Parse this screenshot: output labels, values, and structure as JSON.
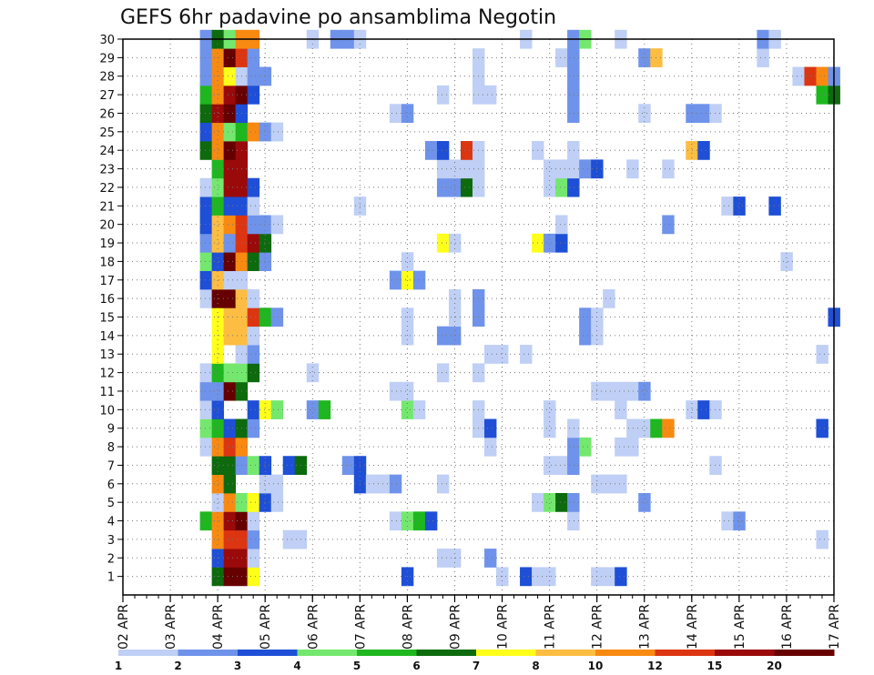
{
  "chart_data": {
    "type": "heatmap",
    "title": "GEFS 6hr padavine po ansamblima Negotin",
    "y_member_ticks": [
      "1",
      "2",
      "3",
      "4",
      "5",
      "6",
      "7",
      "8",
      "9",
      "10",
      "11",
      "12",
      "13",
      "14",
      "15",
      "16",
      "17",
      "18",
      "19",
      "20",
      "21",
      "22",
      "23",
      "24",
      "25",
      "26",
      "27",
      "28",
      "29",
      "30"
    ],
    "x_tick_labels": [
      "02 APR",
      "03 APR",
      "04 APR",
      "05 APR",
      "06 APR",
      "07 APR",
      "08 APR",
      "09 APR",
      "10 APR",
      "11 APR",
      "12 APR",
      "13 APR",
      "14 APR",
      "15 APR",
      "16 APR",
      "17 APR"
    ],
    "x_range_steps": [
      0,
      60
    ],
    "y_range_members": [
      0,
      30
    ],
    "grid": true,
    "legend": {
      "placement": "bottom",
      "thresholds": [
        "1",
        "2",
        "3",
        "4",
        "5",
        "6",
        "7",
        "8",
        "10",
        "12",
        "15",
        "20"
      ],
      "colors": [
        "#bfcff5",
        "#6f93ea",
        "#1e4fd6",
        "#74e86e",
        "#1fb71f",
        "#0d6a0d",
        "#ffff1a",
        "#fcbd42",
        "#f88a12",
        "#dc3512",
        "#9a0a0a",
        "#660000"
      ]
    },
    "cells": [
      [
        1,
        8,
        5
      ],
      [
        1,
        9,
        11
      ],
      [
        1,
        10,
        11
      ],
      [
        1,
        11,
        6
      ],
      [
        1,
        24,
        2
      ],
      [
        1,
        32,
        0
      ],
      [
        1,
        34,
        2
      ],
      [
        1,
        35,
        0
      ],
      [
        1,
        36,
        0
      ],
      [
        1,
        40,
        0
      ],
      [
        1,
        41,
        0
      ],
      [
        1,
        42,
        2
      ],
      [
        2,
        8,
        2
      ],
      [
        2,
        9,
        10
      ],
      [
        2,
        10,
        10
      ],
      [
        2,
        11,
        0
      ],
      [
        2,
        27,
        0
      ],
      [
        2,
        28,
        0
      ],
      [
        2,
        31,
        1
      ],
      [
        3,
        8,
        8
      ],
      [
        3,
        9,
        9
      ],
      [
        3,
        10,
        9
      ],
      [
        3,
        11,
        1
      ],
      [
        3,
        14,
        0
      ],
      [
        3,
        15,
        0
      ],
      [
        3,
        59,
        0
      ],
      [
        4,
        7,
        4
      ],
      [
        4,
        8,
        8
      ],
      [
        4,
        9,
        10
      ],
      [
        4,
        10,
        11
      ],
      [
        4,
        11,
        0
      ],
      [
        4,
        23,
        0
      ],
      [
        4,
        24,
        3
      ],
      [
        4,
        25,
        4
      ],
      [
        4,
        26,
        2
      ],
      [
        4,
        38,
        0
      ],
      [
        4,
        51,
        0
      ],
      [
        4,
        52,
        1
      ],
      [
        5,
        8,
        0
      ],
      [
        5,
        9,
        8
      ],
      [
        5,
        10,
        3
      ],
      [
        5,
        11,
        6
      ],
      [
        5,
        12,
        2
      ],
      [
        5,
        13,
        0
      ],
      [
        5,
        35,
        0
      ],
      [
        5,
        36,
        3
      ],
      [
        5,
        37,
        5
      ],
      [
        5,
        38,
        1
      ],
      [
        5,
        44,
        1
      ],
      [
        6,
        8,
        8
      ],
      [
        6,
        9,
        5
      ],
      [
        6,
        12,
        0
      ],
      [
        6,
        13,
        0
      ],
      [
        6,
        20,
        2
      ],
      [
        6,
        21,
        0
      ],
      [
        6,
        22,
        0
      ],
      [
        6,
        23,
        1
      ],
      [
        6,
        27,
        0
      ],
      [
        6,
        40,
        0
      ],
      [
        6,
        41,
        0
      ],
      [
        6,
        42,
        0
      ],
      [
        7,
        8,
        5
      ],
      [
        7,
        9,
        5
      ],
      [
        7,
        10,
        1
      ],
      [
        7,
        11,
        3
      ],
      [
        7,
        12,
        2
      ],
      [
        7,
        14,
        2
      ],
      [
        7,
        15,
        5
      ],
      [
        7,
        19,
        1
      ],
      [
        7,
        20,
        2
      ],
      [
        7,
        36,
        0
      ],
      [
        7,
        37,
        0
      ],
      [
        7,
        38,
        1
      ],
      [
        7,
        50,
        0
      ],
      [
        8,
        7,
        0
      ],
      [
        8,
        8,
        8
      ],
      [
        8,
        9,
        9
      ],
      [
        8,
        10,
        8
      ],
      [
        8,
        31,
        0
      ],
      [
        8,
        38,
        1
      ],
      [
        8,
        39,
        3
      ],
      [
        8,
        42,
        0
      ],
      [
        8,
        43,
        0
      ],
      [
        9,
        7,
        3
      ],
      [
        9,
        8,
        4
      ],
      [
        9,
        9,
        2
      ],
      [
        9,
        10,
        5
      ],
      [
        9,
        11,
        1
      ],
      [
        9,
        30,
        0
      ],
      [
        9,
        31,
        2
      ],
      [
        9,
        36,
        0
      ],
      [
        9,
        38,
        0
      ],
      [
        9,
        43,
        0
      ],
      [
        9,
        44,
        0
      ],
      [
        9,
        45,
        4
      ],
      [
        9,
        46,
        8
      ],
      [
        9,
        59,
        2
      ],
      [
        10,
        7,
        0
      ],
      [
        10,
        8,
        2
      ],
      [
        10,
        11,
        2
      ],
      [
        10,
        12,
        6
      ],
      [
        10,
        13,
        3
      ],
      [
        10,
        16,
        1
      ],
      [
        10,
        17,
        4
      ],
      [
        10,
        24,
        3
      ],
      [
        10,
        25,
        0
      ],
      [
        10,
        30,
        0
      ],
      [
        10,
        36,
        0
      ],
      [
        10,
        42,
        0
      ],
      [
        10,
        48,
        0
      ],
      [
        10,
        49,
        2
      ],
      [
        10,
        50,
        0
      ],
      [
        11,
        7,
        1
      ],
      [
        11,
        8,
        1
      ],
      [
        11,
        9,
        11
      ],
      [
        11,
        10,
        5
      ],
      [
        11,
        23,
        0
      ],
      [
        11,
        24,
        0
      ],
      [
        11,
        40,
        0
      ],
      [
        11,
        41,
        0
      ],
      [
        11,
        42,
        0
      ],
      [
        11,
        43,
        0
      ],
      [
        11,
        44,
        1
      ],
      [
        12,
        7,
        0
      ],
      [
        12,
        8,
        4
      ],
      [
        12,
        9,
        3
      ],
      [
        12,
        10,
        3
      ],
      [
        12,
        11,
        5
      ],
      [
        12,
        16,
        0
      ],
      [
        12,
        27,
        0
      ],
      [
        12,
        30,
        0
      ],
      [
        13,
        8,
        6
      ],
      [
        13,
        10,
        0
      ],
      [
        13,
        11,
        1
      ],
      [
        13,
        31,
        0
      ],
      [
        13,
        32,
        0
      ],
      [
        13,
        34,
        0
      ],
      [
        13,
        59,
        0
      ],
      [
        14,
        8,
        6
      ],
      [
        14,
        9,
        7
      ],
      [
        14,
        10,
        7
      ],
      [
        14,
        11,
        0
      ],
      [
        14,
        24,
        0
      ],
      [
        14,
        27,
        1
      ],
      [
        14,
        28,
        1
      ],
      [
        14,
        39,
        1
      ],
      [
        14,
        40,
        0
      ],
      [
        15,
        8,
        6
      ],
      [
        15,
        9,
        7
      ],
      [
        15,
        10,
        7
      ],
      [
        15,
        11,
        9
      ],
      [
        15,
        12,
        4
      ],
      [
        15,
        13,
        1
      ],
      [
        15,
        24,
        0
      ],
      [
        15,
        28,
        0
      ],
      [
        15,
        30,
        1
      ],
      [
        15,
        39,
        1
      ],
      [
        15,
        40,
        0
      ],
      [
        15,
        60,
        2
      ],
      [
        16,
        7,
        0
      ],
      [
        16,
        8,
        11
      ],
      [
        16,
        9,
        11
      ],
      [
        16,
        10,
        7
      ],
      [
        16,
        11,
        0
      ],
      [
        16,
        28,
        0
      ],
      [
        16,
        30,
        1
      ],
      [
        16,
        41,
        0
      ],
      [
        17,
        7,
        2
      ],
      [
        17,
        8,
        7
      ],
      [
        17,
        9,
        0
      ],
      [
        17,
        10,
        0
      ],
      [
        17,
        23,
        1
      ],
      [
        17,
        24,
        6
      ],
      [
        17,
        25,
        1
      ],
      [
        18,
        7,
        3
      ],
      [
        18,
        8,
        2
      ],
      [
        18,
        9,
        11
      ],
      [
        18,
        10,
        8
      ],
      [
        18,
        11,
        5
      ],
      [
        18,
        12,
        1
      ],
      [
        18,
        24,
        0
      ],
      [
        18,
        56,
        0
      ],
      [
        19,
        7,
        1
      ],
      [
        19,
        8,
        7
      ],
      [
        19,
        9,
        1
      ],
      [
        19,
        10,
        9
      ],
      [
        19,
        11,
        10
      ],
      [
        19,
        12,
        5
      ],
      [
        19,
        27,
        6
      ],
      [
        19,
        28,
        0
      ],
      [
        19,
        35,
        6
      ],
      [
        19,
        36,
        1
      ],
      [
        19,
        37,
        2
      ],
      [
        20,
        7,
        2
      ],
      [
        20,
        8,
        7
      ],
      [
        20,
        9,
        8
      ],
      [
        20,
        10,
        9
      ],
      [
        20,
        11,
        1
      ],
      [
        20,
        12,
        1
      ],
      [
        20,
        13,
        0
      ],
      [
        20,
        37,
        0
      ],
      [
        20,
        46,
        1
      ],
      [
        21,
        7,
        2
      ],
      [
        21,
        8,
        4
      ],
      [
        21,
        9,
        2
      ],
      [
        21,
        10,
        2
      ],
      [
        21,
        11,
        0
      ],
      [
        21,
        20,
        0
      ],
      [
        21,
        51,
        0
      ],
      [
        21,
        52,
        2
      ],
      [
        21,
        55,
        2
      ],
      [
        22,
        7,
        0
      ],
      [
        22,
        8,
        3
      ],
      [
        22,
        9,
        10
      ],
      [
        22,
        10,
        10
      ],
      [
        22,
        11,
        2
      ],
      [
        22,
        27,
        1
      ],
      [
        22,
        28,
        1
      ],
      [
        22,
        29,
        5
      ],
      [
        22,
        30,
        0
      ],
      [
        22,
        36,
        0
      ],
      [
        22,
        37,
        3
      ],
      [
        22,
        38,
        2
      ],
      [
        23,
        8,
        4
      ],
      [
        23,
        9,
        10
      ],
      [
        23,
        10,
        10
      ],
      [
        23,
        27,
        0
      ],
      [
        23,
        28,
        0
      ],
      [
        23,
        29,
        0
      ],
      [
        23,
        30,
        0
      ],
      [
        23,
        36,
        0
      ],
      [
        23,
        37,
        0
      ],
      [
        23,
        38,
        0
      ],
      [
        23,
        39,
        1
      ],
      [
        23,
        40,
        2
      ],
      [
        23,
        43,
        0
      ],
      [
        23,
        46,
        0
      ],
      [
        24,
        7,
        5
      ],
      [
        24,
        8,
        8
      ],
      [
        24,
        9,
        11
      ],
      [
        24,
        10,
        10
      ],
      [
        24,
        26,
        1
      ],
      [
        24,
        27,
        2
      ],
      [
        24,
        29,
        9
      ],
      [
        24,
        30,
        0
      ],
      [
        24,
        35,
        0
      ],
      [
        24,
        38,
        0
      ],
      [
        24,
        48,
        7
      ],
      [
        24,
        49,
        2
      ],
      [
        25,
        7,
        2
      ],
      [
        25,
        8,
        8
      ],
      [
        25,
        9,
        3
      ],
      [
        25,
        10,
        4
      ],
      [
        25,
        11,
        8
      ],
      [
        25,
        12,
        1
      ],
      [
        25,
        13,
        0
      ],
      [
        26,
        7,
        5
      ],
      [
        26,
        8,
        10
      ],
      [
        26,
        9,
        11
      ],
      [
        26,
        10,
        2
      ],
      [
        26,
        23,
        0
      ],
      [
        26,
        24,
        1
      ],
      [
        26,
        38,
        1
      ],
      [
        26,
        44,
        0
      ],
      [
        26,
        48,
        1
      ],
      [
        26,
        49,
        1
      ],
      [
        26,
        50,
        0
      ],
      [
        27,
        7,
        4
      ],
      [
        27,
        8,
        8
      ],
      [
        27,
        9,
        10
      ],
      [
        27,
        10,
        11
      ],
      [
        27,
        11,
        2
      ],
      [
        27,
        27,
        0
      ],
      [
        27,
        30,
        0
      ],
      [
        27,
        31,
        0
      ],
      [
        27,
        38,
        1
      ],
      [
        27,
        59,
        4
      ],
      [
        27,
        60,
        5
      ],
      [
        28,
        7,
        1
      ],
      [
        28,
        8,
        8
      ],
      [
        28,
        9,
        6
      ],
      [
        28,
        10,
        0
      ],
      [
        28,
        11,
        1
      ],
      [
        28,
        12,
        1
      ],
      [
        28,
        30,
        0
      ],
      [
        28,
        38,
        1
      ],
      [
        28,
        57,
        0
      ],
      [
        28,
        58,
        9
      ],
      [
        28,
        59,
        8
      ],
      [
        28,
        60,
        1
      ],
      [
        29,
        7,
        1
      ],
      [
        29,
        8,
        8
      ],
      [
        29,
        9,
        11
      ],
      [
        29,
        10,
        9
      ],
      [
        29,
        11,
        1
      ],
      [
        29,
        30,
        0
      ],
      [
        29,
        37,
        0
      ],
      [
        29,
        38,
        1
      ],
      [
        29,
        44,
        1
      ],
      [
        29,
        45,
        7
      ],
      [
        29,
        54,
        0
      ],
      [
        30,
        7,
        1
      ],
      [
        30,
        8,
        5
      ],
      [
        30,
        9,
        3
      ],
      [
        30,
        10,
        8
      ],
      [
        30,
        11,
        8
      ],
      [
        30,
        16,
        0
      ],
      [
        30,
        18,
        1
      ],
      [
        30,
        19,
        1
      ],
      [
        30,
        20,
        0
      ],
      [
        30,
        34,
        0
      ],
      [
        30,
        38,
        1
      ],
      [
        30,
        39,
        3
      ],
      [
        30,
        42,
        0
      ],
      [
        30,
        54,
        1
      ],
      [
        30,
        55,
        0
      ]
    ]
  }
}
